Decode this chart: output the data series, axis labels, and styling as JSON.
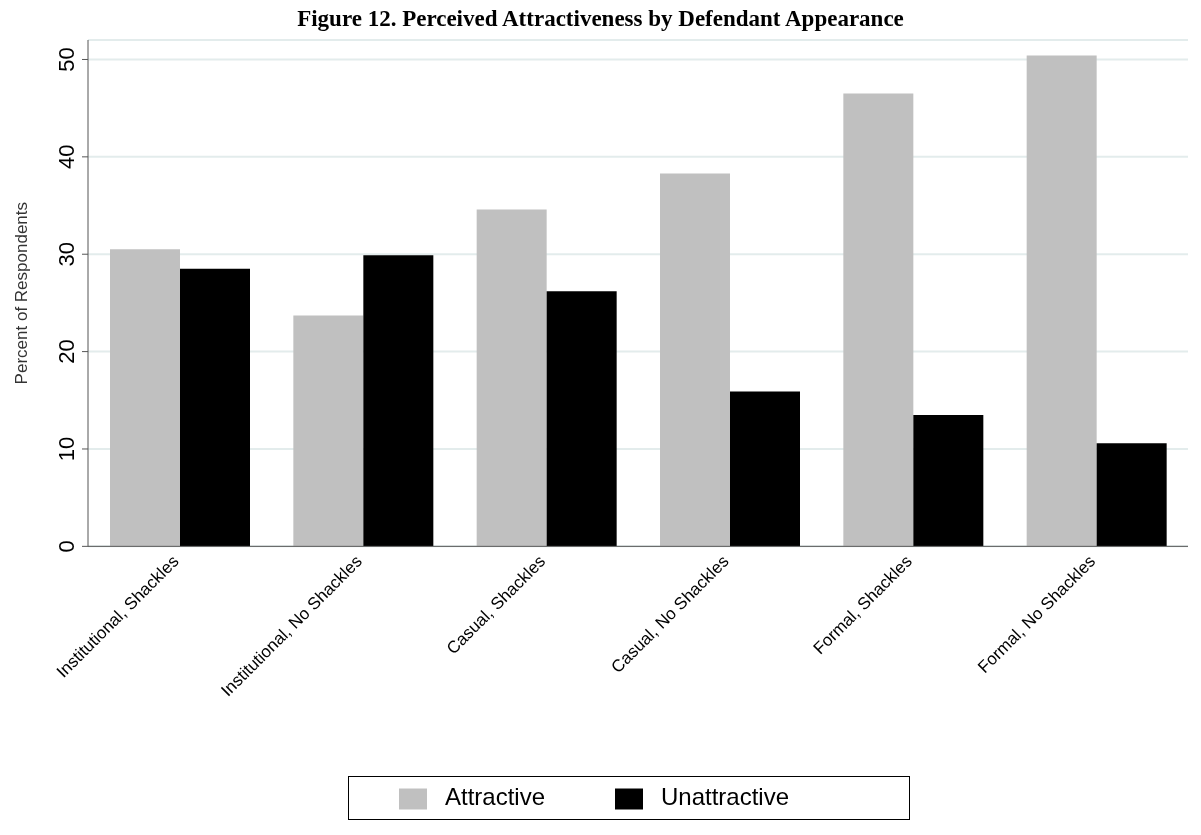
{
  "chart_data": {
    "type": "bar",
    "title": "Figure 12. Perceived Attractiveness by Defendant Appearance",
    "ylabel": "Percent of Respondents",
    "categories": [
      "Institutional, Shackles",
      "Institutional, No Shackles",
      "Casual, Shackles",
      "Casual, No Shackles",
      "Formal, Shackles",
      "Formal, No Shackles"
    ],
    "series": [
      {
        "name": "Attractive",
        "color": "#c0c0c0",
        "values": [
          30.5,
          23.7,
          34.6,
          38.3,
          46.5,
          50.4
        ]
      },
      {
        "name": "Unattractive",
        "color": "#000000",
        "values": [
          28.5,
          29.9,
          26.2,
          15.9,
          13.5,
          10.6
        ]
      }
    ],
    "ylim": [
      0,
      52
    ],
    "yticks": [
      0,
      10,
      20,
      30,
      40,
      50
    ],
    "grid": "y",
    "legend": "bottom"
  }
}
